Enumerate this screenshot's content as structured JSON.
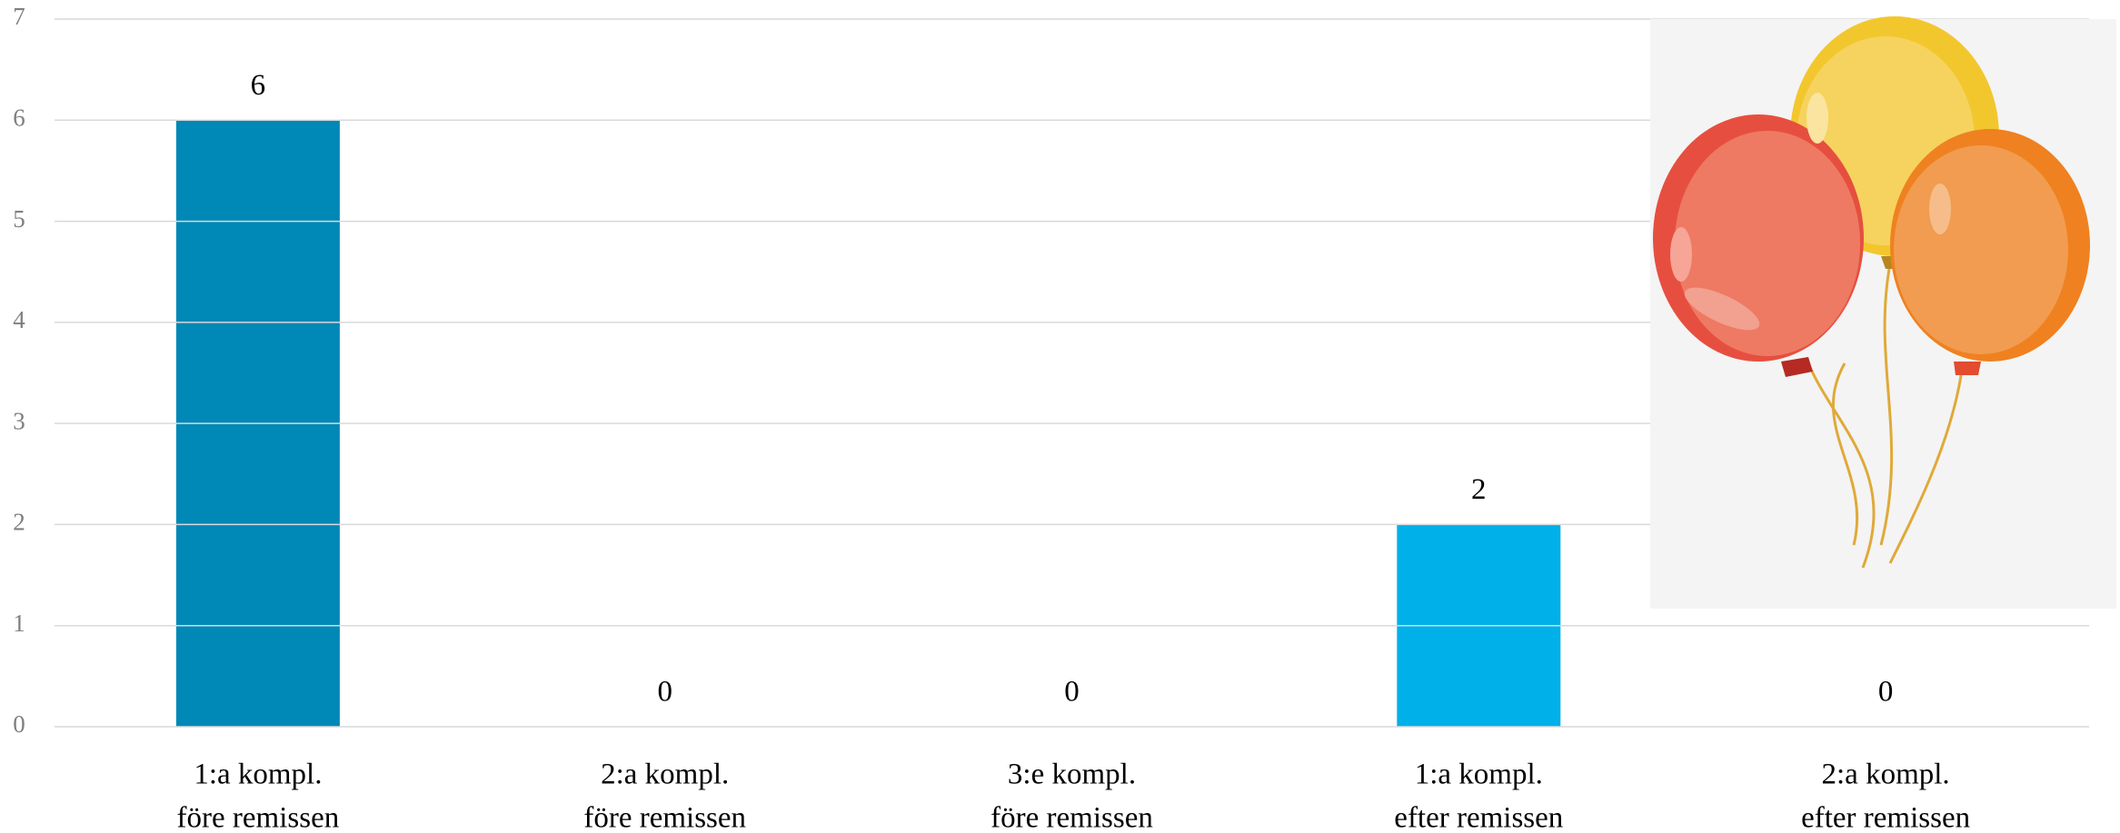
{
  "chart_data": {
    "type": "bar",
    "categories": [
      [
        "1:a kompl.",
        "före remissen"
      ],
      [
        "2:a kompl.",
        "före remissen"
      ],
      [
        "3:e kompl.",
        "före remissen"
      ],
      [
        "1:a kompl.",
        "efter remissen"
      ],
      [
        "2:a kompl.",
        "efter remissen"
      ]
    ],
    "values": [
      6,
      0,
      0,
      2,
      0
    ],
    "colors": [
      "#0088b6",
      "#0088b6",
      "#0088b6",
      "#00b0e9",
      "#00b0e9"
    ],
    "ylim": [
      0,
      7
    ],
    "yticks": [
      0,
      1,
      2,
      3,
      4,
      5,
      6,
      7
    ],
    "grid": true
  }
}
